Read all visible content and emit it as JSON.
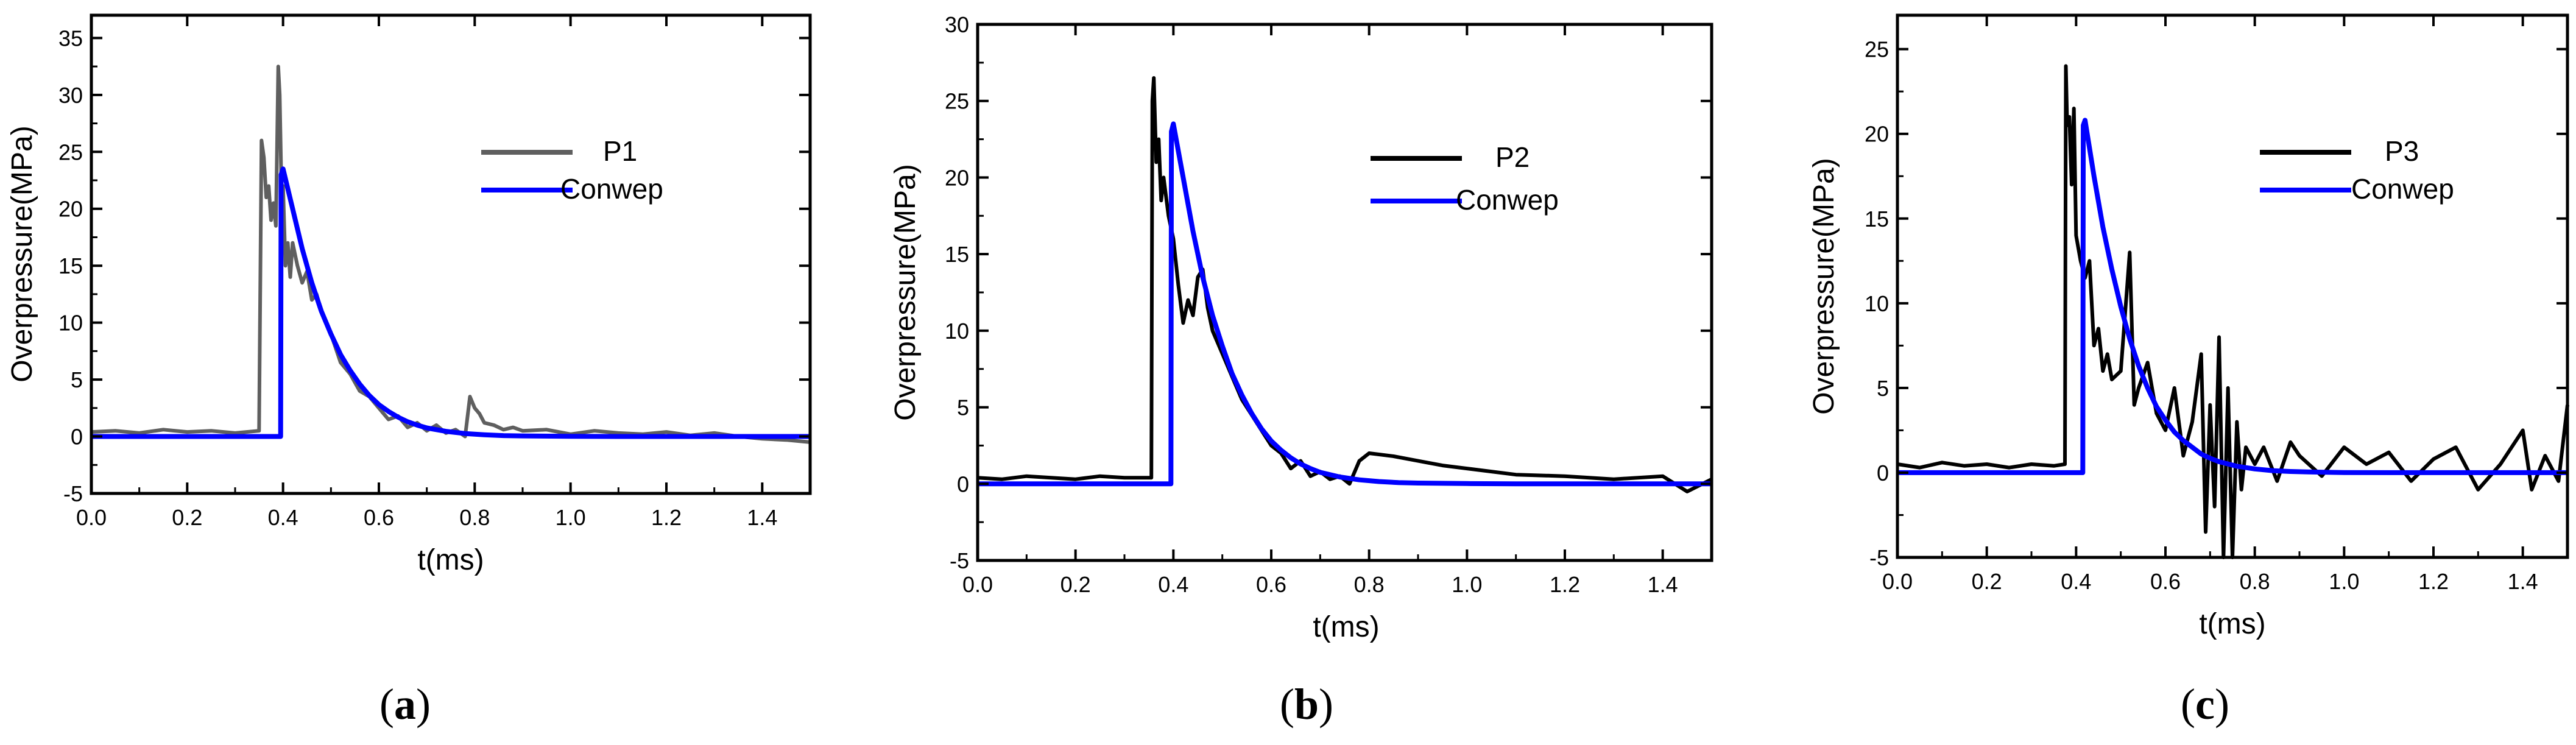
{
  "chart_data": [
    {
      "panel_label": "(a)",
      "panel_letter": "a",
      "type": "line",
      "xlabel": "t(ms)",
      "ylabel": "Overpressure(MPa)",
      "xlim": [
        0,
        1.5
      ],
      "ylim": [
        -5,
        37
      ],
      "xticks": [
        0.0,
        0.2,
        0.4,
        0.6,
        0.8,
        1.0,
        1.2,
        1.4
      ],
      "xtick_labels": [
        "0.0",
        "0.2",
        "0.4",
        "0.6",
        "0.8",
        "1.0",
        "1.2",
        "1.4"
      ],
      "yticks": [
        -5,
        0,
        5,
        10,
        15,
        20,
        25,
        30,
        35
      ],
      "ytick_labels": [
        "-5",
        "0",
        "5",
        "10",
        "15",
        "20",
        "25",
        "30",
        "35"
      ],
      "legend_position": "upper-right",
      "series": [
        {
          "name": "P1",
          "color": "#5f5f5f",
          "x": [
            0.0,
            0.05,
            0.1,
            0.15,
            0.2,
            0.25,
            0.3,
            0.35,
            0.355,
            0.36,
            0.365,
            0.37,
            0.375,
            0.38,
            0.385,
            0.39,
            0.393,
            0.397,
            0.4,
            0.405,
            0.41,
            0.415,
            0.42,
            0.43,
            0.44,
            0.45,
            0.46,
            0.47,
            0.48,
            0.49,
            0.5,
            0.52,
            0.54,
            0.56,
            0.58,
            0.6,
            0.62,
            0.64,
            0.66,
            0.68,
            0.7,
            0.72,
            0.74,
            0.76,
            0.78,
            0.79,
            0.8,
            0.81,
            0.82,
            0.84,
            0.86,
            0.88,
            0.9,
            0.95,
            1.0,
            1.05,
            1.1,
            1.15,
            1.2,
            1.25,
            1.3,
            1.35,
            1.4,
            1.45,
            1.5
          ],
          "y": [
            0.4,
            0.5,
            0.3,
            0.6,
            0.4,
            0.5,
            0.3,
            0.5,
            26.0,
            24.5,
            21.0,
            22.0,
            19.0,
            20.5,
            18.5,
            32.5,
            30.0,
            21.0,
            22.0,
            15.0,
            17.0,
            14.0,
            17.0,
            15.0,
            13.5,
            14.5,
            12.0,
            12.5,
            11.0,
            10.0,
            9.0,
            6.5,
            5.5,
            4.0,
            3.5,
            2.5,
            1.5,
            1.8,
            0.8,
            1.2,
            0.5,
            1.0,
            0.3,
            0.6,
            0.0,
            3.5,
            2.5,
            2.0,
            1.2,
            1.0,
            0.6,
            0.8,
            0.5,
            0.6,
            0.2,
            0.5,
            0.3,
            0.2,
            0.4,
            0.1,
            0.3,
            0.0,
            -0.2,
            -0.3,
            -0.5
          ]
        },
        {
          "name": "Conwep",
          "color": "#0000ff",
          "x": [
            0.0,
            0.1,
            0.2,
            0.3,
            0.395,
            0.396,
            0.4,
            0.42,
            0.44,
            0.46,
            0.48,
            0.5,
            0.52,
            0.54,
            0.56,
            0.58,
            0.6,
            0.62,
            0.64,
            0.66,
            0.68,
            0.7,
            0.74,
            0.78,
            0.82,
            0.86,
            0.9,
            1.0,
            1.1,
            1.2,
            1.3,
            1.4,
            1.5
          ],
          "y": [
            0,
            0,
            0,
            0,
            0,
            23.0,
            23.5,
            20.0,
            16.5,
            13.5,
            11.0,
            9.0,
            7.2,
            5.8,
            4.6,
            3.6,
            2.8,
            2.2,
            1.7,
            1.3,
            1.0,
            0.75,
            0.45,
            0.26,
            0.15,
            0.08,
            0.05,
            0.02,
            0,
            0,
            0,
            0,
            0
          ]
        }
      ]
    },
    {
      "panel_label": "(b)",
      "panel_letter": "b",
      "type": "line",
      "xlabel": "t(ms)",
      "ylabel": "Overpressure(MPa)",
      "xlim": [
        0,
        1.5
      ],
      "ylim": [
        -5,
        30
      ],
      "xticks": [
        0.0,
        0.2,
        0.4,
        0.6,
        0.8,
        1.0,
        1.2,
        1.4
      ],
      "xtick_labels": [
        "0.0",
        "0.2",
        "0.4",
        "0.6",
        "0.8",
        "1.0",
        "1.2",
        "1.4"
      ],
      "yticks": [
        -5,
        0,
        5,
        10,
        15,
        20,
        25,
        30
      ],
      "ytick_labels": [
        "-5",
        "0",
        "5",
        "10",
        "15",
        "20",
        "25",
        "30"
      ],
      "legend_position": "upper-right",
      "series": [
        {
          "name": "P2",
          "color": "#000000",
          "x": [
            0.0,
            0.05,
            0.1,
            0.15,
            0.2,
            0.25,
            0.3,
            0.355,
            0.357,
            0.36,
            0.365,
            0.37,
            0.375,
            0.38,
            0.39,
            0.4,
            0.41,
            0.42,
            0.43,
            0.44,
            0.45,
            0.46,
            0.47,
            0.48,
            0.5,
            0.52,
            0.54,
            0.56,
            0.58,
            0.6,
            0.62,
            0.64,
            0.66,
            0.68,
            0.7,
            0.72,
            0.74,
            0.76,
            0.78,
            0.8,
            0.85,
            0.9,
            0.95,
            1.0,
            1.1,
            1.2,
            1.3,
            1.4,
            1.45,
            1.5
          ],
          "y": [
            0.4,
            0.3,
            0.5,
            0.4,
            0.3,
            0.5,
            0.4,
            0.4,
            25.0,
            26.5,
            21.0,
            22.5,
            18.5,
            20.0,
            17.5,
            16.0,
            13.0,
            10.5,
            12.0,
            11.0,
            13.5,
            14.0,
            11.5,
            10.0,
            8.5,
            7.0,
            5.5,
            4.5,
            3.5,
            2.5,
            2.0,
            1.0,
            1.5,
            0.5,
            0.8,
            0.3,
            0.5,
            0.0,
            1.5,
            2.0,
            1.8,
            1.5,
            1.2,
            1.0,
            0.6,
            0.5,
            0.3,
            0.5,
            -0.5,
            0.3
          ]
        },
        {
          "name": "Conwep",
          "color": "#0000ff",
          "x": [
            0.0,
            0.1,
            0.2,
            0.3,
            0.395,
            0.396,
            0.4,
            0.42,
            0.44,
            0.46,
            0.48,
            0.5,
            0.52,
            0.54,
            0.56,
            0.58,
            0.6,
            0.62,
            0.64,
            0.66,
            0.68,
            0.7,
            0.74,
            0.78,
            0.82,
            0.86,
            0.9,
            1.0,
            1.1,
            1.2,
            1.3,
            1.4,
            1.5
          ],
          "y": [
            0,
            0,
            0,
            0,
            0,
            23.0,
            23.5,
            20.0,
            16.5,
            13.5,
            11.0,
            9.0,
            7.2,
            5.8,
            4.6,
            3.6,
            2.8,
            2.2,
            1.7,
            1.3,
            1.0,
            0.75,
            0.45,
            0.26,
            0.15,
            0.08,
            0.05,
            0.02,
            0,
            0,
            0,
            0,
            0
          ]
        }
      ]
    },
    {
      "panel_label": "(c)",
      "panel_letter": "c",
      "type": "line",
      "xlabel": "t(ms)",
      "ylabel": "Overpressure(MPa)",
      "xlim": [
        0,
        1.5
      ],
      "ylim": [
        -5,
        27
      ],
      "xticks": [
        0.0,
        0.2,
        0.4,
        0.6,
        0.8,
        1.0,
        1.2,
        1.4
      ],
      "xtick_labels": [
        "0.0",
        "0.2",
        "0.4",
        "0.6",
        "0.8",
        "1.0",
        "1.2",
        "1.4"
      ],
      "yticks": [
        -5,
        0,
        5,
        10,
        15,
        20,
        25
      ],
      "ytick_labels": [
        "-5",
        "0",
        "5",
        "10",
        "15",
        "20",
        "25"
      ],
      "legend_position": "upper-right",
      "series": [
        {
          "name": "P3",
          "color": "#000000",
          "x": [
            0.0,
            0.05,
            0.1,
            0.15,
            0.2,
            0.25,
            0.3,
            0.35,
            0.375,
            0.377,
            0.38,
            0.385,
            0.39,
            0.395,
            0.4,
            0.41,
            0.42,
            0.43,
            0.44,
            0.45,
            0.46,
            0.47,
            0.48,
            0.5,
            0.52,
            0.53,
            0.54,
            0.56,
            0.58,
            0.6,
            0.62,
            0.64,
            0.66,
            0.68,
            0.69,
            0.7,
            0.71,
            0.72,
            0.73,
            0.74,
            0.75,
            0.76,
            0.77,
            0.78,
            0.8,
            0.82,
            0.85,
            0.88,
            0.9,
            0.95,
            1.0,
            1.05,
            1.1,
            1.15,
            1.2,
            1.25,
            1.3,
            1.35,
            1.4,
            1.42,
            1.45,
            1.48,
            1.5
          ],
          "y": [
            0.5,
            0.3,
            0.6,
            0.4,
            0.5,
            0.3,
            0.5,
            0.4,
            0.5,
            24.0,
            20.5,
            21.0,
            17.0,
            21.5,
            14.0,
            12.5,
            11.5,
            12.5,
            7.5,
            8.5,
            6.0,
            7.0,
            5.5,
            6.0,
            13.0,
            4.0,
            5.0,
            6.5,
            3.5,
            2.5,
            5.0,
            1.0,
            3.0,
            7.0,
            -3.5,
            4.0,
            -2.0,
            8.0,
            -5.0,
            5.0,
            -5.0,
            3.0,
            -1.0,
            1.5,
            0.5,
            1.5,
            -0.5,
            1.8,
            1.0,
            -0.2,
            1.5,
            0.5,
            1.2,
            -0.5,
            0.8,
            1.5,
            -1.0,
            0.5,
            2.5,
            -1.0,
            1.0,
            -0.5,
            4.0
          ]
        },
        {
          "name": "Conwep",
          "color": "#0000ff",
          "x": [
            0.0,
            0.1,
            0.2,
            0.3,
            0.415,
            0.416,
            0.42,
            0.44,
            0.46,
            0.48,
            0.5,
            0.52,
            0.54,
            0.56,
            0.58,
            0.6,
            0.62,
            0.64,
            0.66,
            0.68,
            0.7,
            0.72,
            0.76,
            0.8,
            0.84,
            0.88,
            0.92,
            1.0,
            1.1,
            1.2,
            1.3,
            1.4,
            1.5
          ],
          "y": [
            0,
            0,
            0,
            0,
            0,
            20.5,
            20.8,
            17.5,
            14.5,
            12.0,
            9.8,
            7.9,
            6.3,
            5.0,
            3.9,
            3.1,
            2.4,
            1.9,
            1.5,
            1.1,
            0.85,
            0.65,
            0.38,
            0.22,
            0.12,
            0.07,
            0.04,
            0.01,
            0,
            0,
            0,
            0,
            0
          ]
        }
      ]
    }
  ]
}
